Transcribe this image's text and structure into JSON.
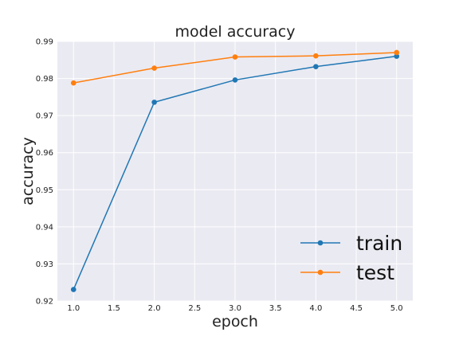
{
  "chart_data": {
    "type": "line",
    "title": "model accuracy",
    "xlabel": "epoch",
    "ylabel": "accuracy",
    "xlim": [
      0.8,
      5.2
    ],
    "ylim": [
      0.92,
      0.99
    ],
    "x_ticks": [
      1.0,
      1.5,
      2.0,
      2.5,
      3.0,
      3.5,
      4.0,
      4.5,
      5.0
    ],
    "y_ticks": [
      0.92,
      0.93,
      0.94,
      0.95,
      0.96,
      0.97,
      0.98,
      0.99
    ],
    "x_tick_labels": [
      "1.0",
      "1.5",
      "2.0",
      "2.5",
      "3.0",
      "3.5",
      "4.0",
      "4.5",
      "5.0"
    ],
    "y_tick_labels": [
      "0.92",
      "0.93",
      "0.94",
      "0.95",
      "0.96",
      "0.97",
      "0.98",
      "0.99"
    ],
    "x": [
      1,
      2,
      3,
      4,
      5
    ],
    "series": [
      {
        "name": "train",
        "color": "#1f77b4",
        "values": [
          0.9231,
          0.9736,
          0.9796,
          0.9832,
          0.986
        ]
      },
      {
        "name": "test",
        "color": "#ff7f0e",
        "values": [
          0.9788,
          0.9828,
          0.9858,
          0.9861,
          0.987
        ]
      }
    ],
    "grid": true,
    "background": "#eaeaf2",
    "legend_position": "lower-right"
  }
}
